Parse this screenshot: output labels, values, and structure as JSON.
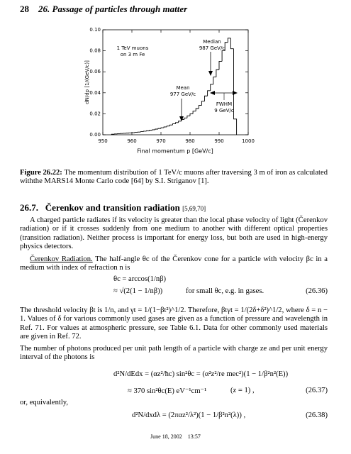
{
  "header": {
    "page_number": "28",
    "title": "26. Passage of particles through matter"
  },
  "chart_data": {
    "type": "histogram",
    "bins": [
      953,
      954,
      955,
      956,
      957,
      958,
      959,
      960,
      961,
      962,
      963,
      964,
      965,
      966,
      967,
      968,
      969,
      970,
      971,
      972,
      973,
      974,
      975,
      976,
      977,
      978,
      979,
      980,
      981,
      982,
      983,
      984,
      985,
      986,
      987,
      988,
      989,
      990,
      991,
      992,
      993,
      994,
      995,
      996
    ],
    "values": [
      0.0005,
      0.0008,
      0.001,
      0.0012,
      0.0014,
      0.0016,
      0.0018,
      0.002,
      0.0023,
      0.0026,
      0.003,
      0.0034,
      0.0038,
      0.0043,
      0.0048,
      0.0054,
      0.006,
      0.0067,
      0.0075,
      0.0083,
      0.0093,
      0.0104,
      0.0116,
      0.013,
      0.0145,
      0.016,
      0.018,
      0.02,
      0.0225,
      0.025,
      0.028,
      0.032,
      0.037,
      0.042,
      0.048,
      0.055,
      0.062,
      0.07,
      0.08,
      0.088,
      0.092,
      0.082,
      0.015
    ],
    "color": "#000000",
    "xlim": [
      950,
      1000
    ],
    "ylim": [
      0,
      0.1
    ],
    "xticks": [
      950,
      960,
      970,
      980,
      990,
      1000
    ],
    "yticks": [
      {
        "value": 0,
        "label": "0.00"
      },
      {
        "value": 0.02,
        "label": "0.02"
      },
      {
        "value": 0.04,
        "label": "0.04"
      },
      {
        "value": 0.06,
        "label": "0.06"
      },
      {
        "value": 0.08,
        "label": "0.08"
      },
      {
        "value": 0.1,
        "label": "0.10"
      }
    ],
    "xlabel": "Final momentum  p  [GeV/c]",
    "ylabel": "dN/dp  [1/(GeV/c)]",
    "annotations": [
      "1 TeV muons",
      "on 3 m Fe",
      "Median",
      "987 GeV/c",
      "Mean",
      "977 GeV/c",
      "FWHM",
      "9 GeV/c"
    ]
  },
  "caption": {
    "label": "Figure 26.22:",
    "text": "The momentum distribution of 1 TeV/c muons after traversing 3 m of iron as calculated withthe MARS14 Monte Carlo code [64] by S.I. Striganov [1]."
  },
  "section": {
    "number": "26.7.",
    "title": "Čerenkov and transition radiation",
    "refs": "[5,69,70]"
  },
  "paragraphs": [
    "A charged particle radiates if its velocity is greater than the local phase velocity of light (Čerenkov radiation) or if it crosses suddenly from one medium to another with different optical properties (transition radiation). Neither process is important for energy loss, but both are used in high-energy physics detectors.",
    {
      "runin": "Čerenkov Radiation.",
      "text": "The half-angle θc of the Čerenkov cone for a particle with velocity βc in a medium with index of refraction n is"
    },
    "The threshold velocity βt is 1/n, and γt = 1/(1−βt²)^1/2. Therefore, βtγt = 1/(2δ+δ²)^1/2, where δ = n − 1. Values of δ for various commonly used gases are given as a function of pressure and wavelength in Ref. 71. For values at atmospheric pressure, see Table 6.1. Data for other commonly used materials are given in Ref. 72.",
    "The number of photons produced per unit path length of a particle with charge ze and per unit energy interval of the photons is",
    "or, equivalently,"
  ],
  "equations": [
    {
      "lines": [
        "θc = arccos(1/nβ)",
        "≈ √(2(1 − 1/nβ))"
      ],
      "note": "for small θc, e.g. in gases.",
      "number": "(26.36)"
    },
    {
      "lines": [
        "d²N/dEdx = (αz²/ħc) sin²θc = (α²z²/re mec²)(1 − 1/β²n²(E))",
        "≈ 370 sin²θc(E) eV⁻¹cm⁻¹"
      ],
      "note": "(z = 1) ,",
      "number": "(26.37)"
    },
    {
      "lines": [
        "d²N/dxdλ = (2παz²/λ²)(1 − 1/β²n²(λ)) ,"
      ],
      "number": "(26.38)"
    }
  ],
  "footer": "June 18, 2002    13:57"
}
